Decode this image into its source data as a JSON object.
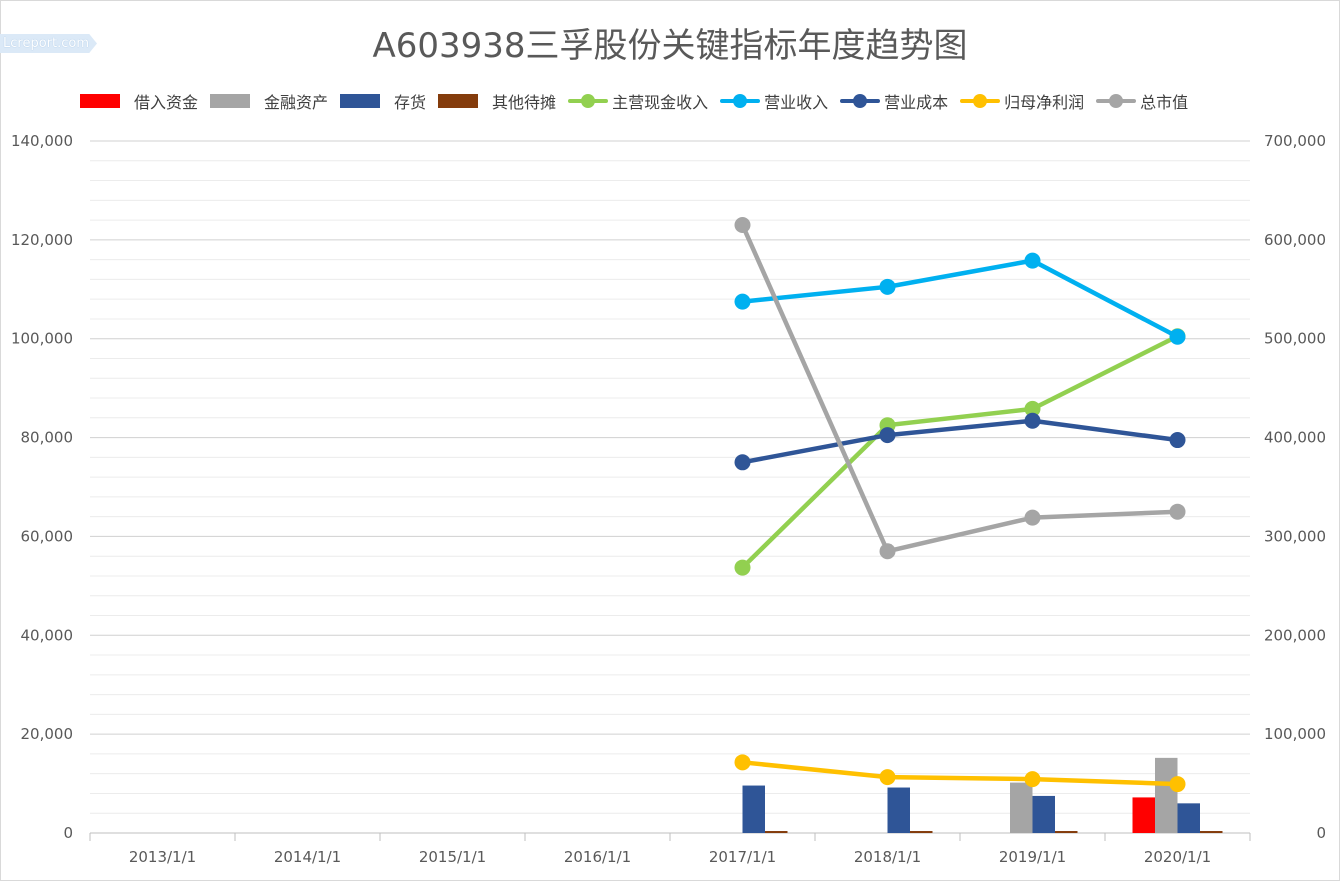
{
  "watermark": "Lcreport.com",
  "chart_data": {
    "type": "bar+line",
    "title": "A603938三孚股份关键指标年度趋势图",
    "categories": [
      "2013/1/1",
      "2014/1/1",
      "2015/1/1",
      "2016/1/1",
      "2017/1/1",
      "2018/1/1",
      "2019/1/1",
      "2020/1/1"
    ],
    "y_left": {
      "min": 0,
      "max": 140000,
      "ticks": [
        "0",
        "20,000",
        "40,000",
        "60,000",
        "80,000",
        "100,000",
        "120,000",
        "140,000"
      ]
    },
    "y_right": {
      "min": 0,
      "max": 700000,
      "ticks": [
        "0",
        "100,000",
        "200,000",
        "300,000",
        "400,000",
        "500,000",
        "600,000",
        "700,000"
      ]
    },
    "legend_position": "top",
    "grid": true,
    "bar_series": [
      {
        "name": "借入资金",
        "color": "#ff0000",
        "values": [
          null,
          null,
          null,
          null,
          0,
          0,
          0,
          7200
        ]
      },
      {
        "name": "金融资产",
        "color": "#a5a5a5",
        "values": [
          null,
          null,
          null,
          null,
          0,
          0,
          10200,
          15200
        ]
      },
      {
        "name": "存货",
        "color": "#2f5597",
        "values": [
          null,
          null,
          null,
          null,
          9600,
          9200,
          7500,
          6000
        ]
      },
      {
        "name": "其他待摊",
        "color": "#843c0c",
        "values": [
          null,
          null,
          null,
          null,
          400,
          400,
          400,
          400
        ]
      }
    ],
    "line_series": [
      {
        "name": "主营现金收入",
        "color": "#92d050",
        "axis": "left",
        "values": [
          null,
          null,
          null,
          null,
          53700,
          82500,
          85800,
          100500
        ]
      },
      {
        "name": "营业收入",
        "color": "#00b0f0",
        "axis": "left",
        "values": [
          null,
          null,
          null,
          null,
          107500,
          110500,
          115800,
          100400
        ]
      },
      {
        "name": "营业成本",
        "color": "#2f5597",
        "axis": "left",
        "values": [
          null,
          null,
          null,
          null,
          75000,
          80500,
          83400,
          79500
        ]
      },
      {
        "name": "归母净利润",
        "color": "#ffc000",
        "axis": "left",
        "values": [
          null,
          null,
          null,
          null,
          14300,
          11300,
          10900,
          9900
        ]
      },
      {
        "name": "总市值",
        "color": "#a5a5a5",
        "axis": "right",
        "values": [
          null,
          null,
          null,
          null,
          615000,
          285000,
          319000,
          325000
        ]
      }
    ]
  }
}
